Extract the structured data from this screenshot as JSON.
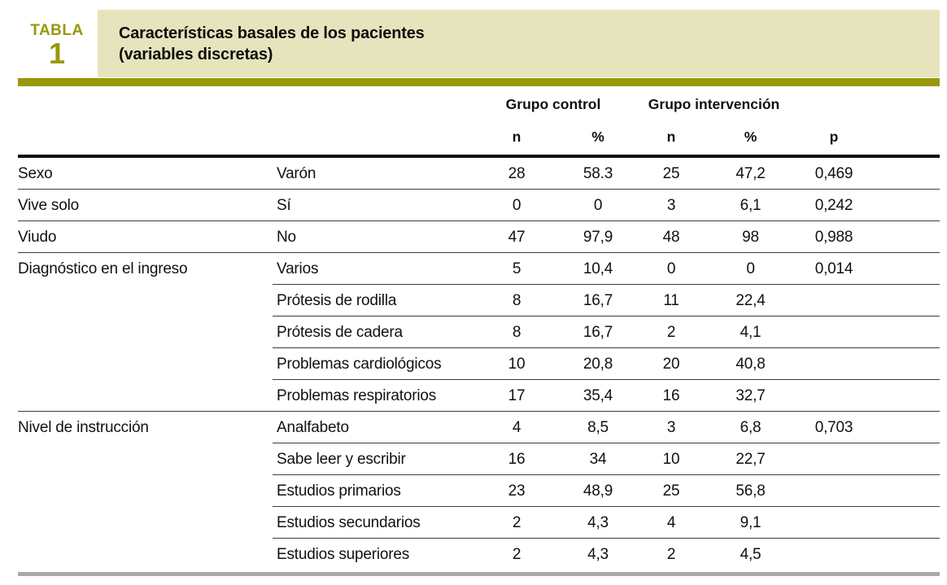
{
  "colors": {
    "olive": "#98980a",
    "pale": "#e6e4bd",
    "rule_black": "#0d0d0d",
    "gray_bar": "#a9a9a9"
  },
  "table_badge": {
    "kicker": "TABLA",
    "number": "1"
  },
  "title": {
    "line1": "Características basales de los pacientes",
    "line2": "(variables discretas)"
  },
  "header": {
    "group_control": "Grupo control",
    "group_intervention": "Grupo intervención",
    "n1": "n",
    "pct1": "%",
    "n2": "n",
    "pct2": "%",
    "p": "p"
  },
  "rows": [
    {
      "category": "Sexo",
      "label": "Varón",
      "n1": "28",
      "pct1": "58.3",
      "n2": "25",
      "pct2": "47,2",
      "p": "0,469"
    },
    {
      "category": "Vive solo",
      "label": "Sí",
      "n1": "0",
      "pct1": "0",
      "n2": "3",
      "pct2": "6,1",
      "p": "0,242"
    },
    {
      "category": "Viudo",
      "label": "No",
      "n1": "47",
      "pct1": "97,9",
      "n2": "48",
      "pct2": "98",
      "p": "0,988"
    },
    {
      "category": "Diagnóstico en el ingreso",
      "label": "Varios",
      "n1": "5",
      "pct1": "10,4",
      "n2": "0",
      "pct2": "0",
      "p": "0,014"
    },
    {
      "category": "",
      "label": "Prótesis de rodilla",
      "n1": "8",
      "pct1": "16,7",
      "n2": "11",
      "pct2": "22,4",
      "p": ""
    },
    {
      "category": "",
      "label": "Prótesis de cadera",
      "n1": "8",
      "pct1": "16,7",
      "n2": "2",
      "pct2": "4,1",
      "p": ""
    },
    {
      "category": "",
      "label": "Problemas cardiológicos",
      "n1": "10",
      "pct1": "20,8",
      "n2": "20",
      "pct2": "40,8",
      "p": ""
    },
    {
      "category": "",
      "label": "Problemas respiratorios",
      "n1": "17",
      "pct1": "35,4",
      "n2": "16",
      "pct2": "32,7",
      "p": ""
    },
    {
      "category": "Nivel de instrucción",
      "label": "Analfabeto",
      "n1": "4",
      "pct1": "8,5",
      "n2": "3",
      "pct2": "6,8",
      "p": "0,703"
    },
    {
      "category": "",
      "label": "Sabe leer y escribir",
      "n1": "16",
      "pct1": "34",
      "n2": "10",
      "pct2": "22,7",
      "p": ""
    },
    {
      "category": "",
      "label": "Estudios primarios",
      "n1": "23",
      "pct1": "48,9",
      "n2": "25",
      "pct2": "56,8",
      "p": ""
    },
    {
      "category": "",
      "label": "Estudios secundarios",
      "n1": "2",
      "pct1": "4,3",
      "n2": "4",
      "pct2": "9,1",
      "p": ""
    },
    {
      "category": "",
      "label": "Estudios superiores",
      "n1": "2",
      "pct1": "4,3",
      "n2": "2",
      "pct2": "4,5",
      "p": ""
    }
  ],
  "row_separators": [
    "full",
    "full",
    "full",
    "part",
    "part",
    "part",
    "part",
    "full",
    "part",
    "part",
    "part",
    "part",
    "none"
  ]
}
